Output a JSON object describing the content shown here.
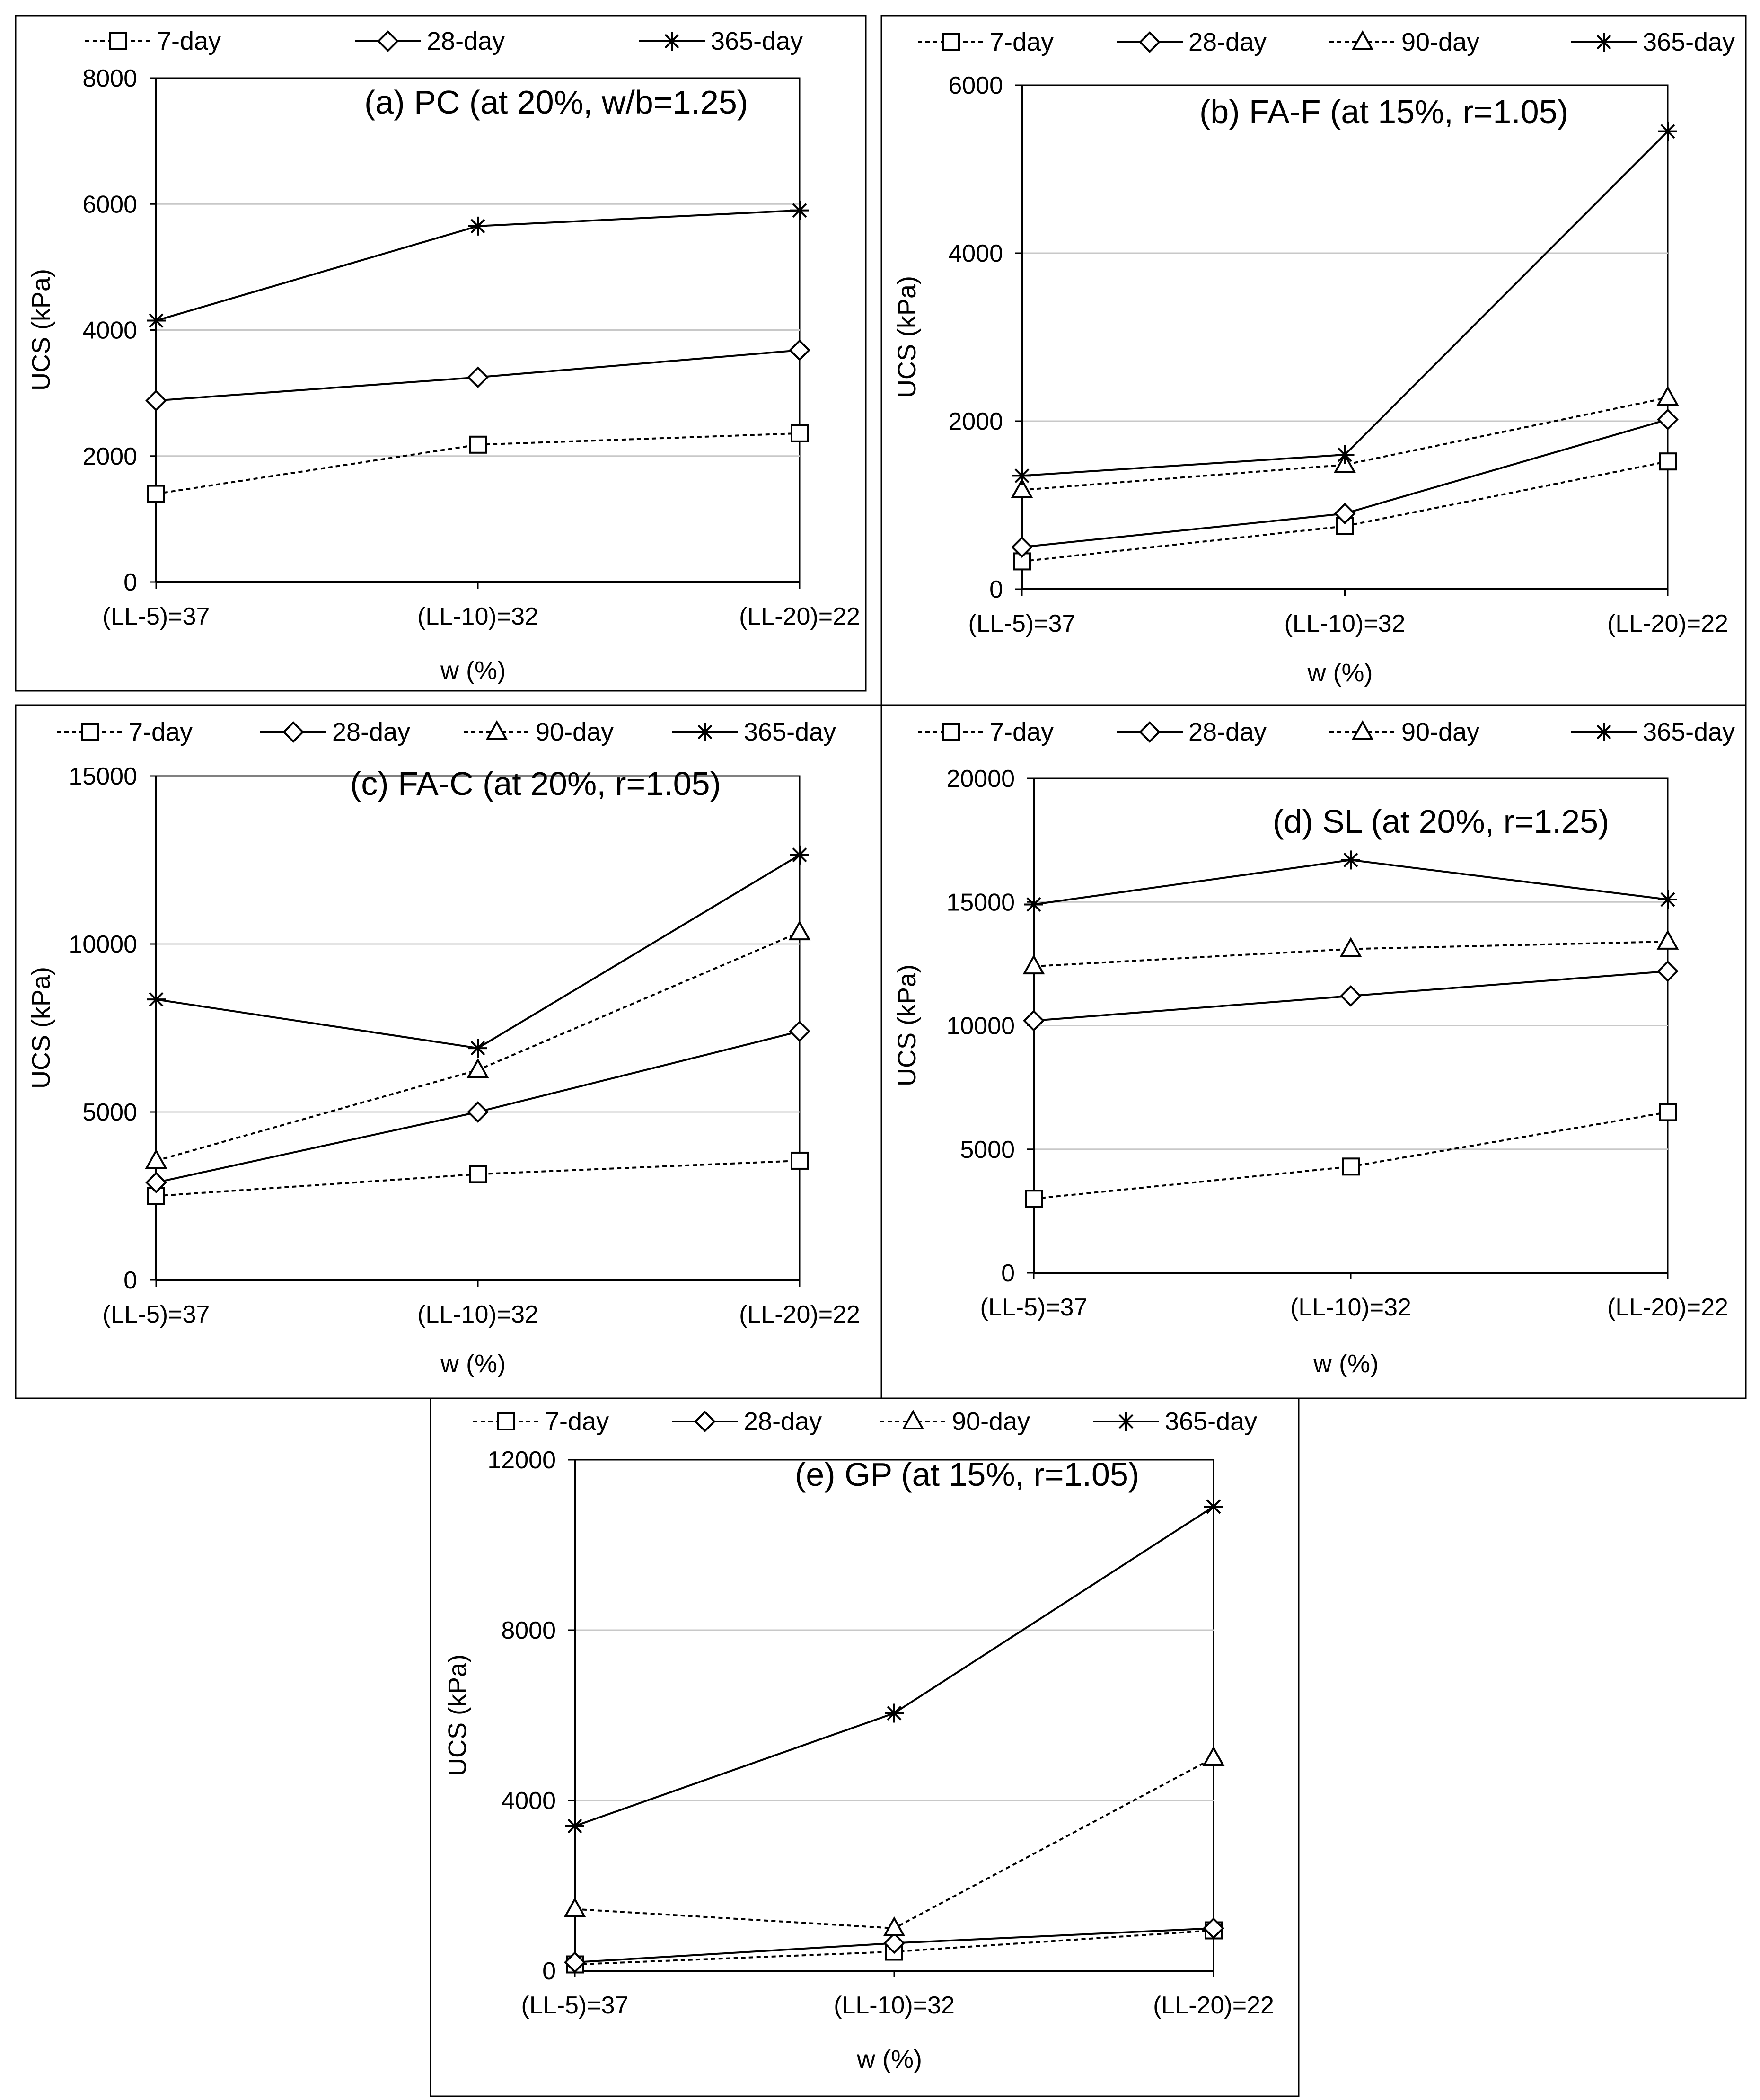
{
  "series_styles": {
    "7-day": {
      "marker": "square",
      "dashed": true
    },
    "28-day": {
      "marker": "diamond",
      "dashed": false
    },
    "90-day": {
      "marker": "triangle",
      "dashed": true
    },
    "365-day": {
      "marker": "star",
      "dashed": false
    }
  },
  "colors": {
    "line": "#000000",
    "grid": "#c8c8c8",
    "background": "#ffffff"
  },
  "chart_data": [
    {
      "type": "line",
      "title": "(a) PC (at 20%, w/b=1.25)",
      "xlabel": "w (%)",
      "ylabel": "UCS (kPa)",
      "categories": [
        "(LL-5)=37",
        "(LL-10)=32",
        "(LL-20)=22"
      ],
      "ylim": [
        0,
        8000
      ],
      "yticks": [
        0,
        2000,
        4000,
        6000,
        8000
      ],
      "grid": true,
      "legend_position": "top",
      "series": [
        {
          "name": "7-day",
          "values": [
            1400,
            2180,
            2360
          ]
        },
        {
          "name": "28-day",
          "values": [
            2880,
            3250,
            3680
          ]
        },
        {
          "name": "365-day",
          "values": [
            4150,
            5650,
            5900
          ]
        }
      ]
    },
    {
      "type": "line",
      "title": "(b) FA-F (at 15%, r=1.05)",
      "xlabel": "w (%)",
      "ylabel": "UCS (kPa)",
      "categories": [
        "(LL-5)=37",
        "(LL-10)=32",
        "(LL-20)=22"
      ],
      "ylim": [
        0,
        6000
      ],
      "yticks": [
        0,
        2000,
        4000,
        6000
      ],
      "grid": true,
      "legend_position": "top",
      "series": [
        {
          "name": "7-day",
          "values": [
            330,
            750,
            1520
          ]
        },
        {
          "name": "28-day",
          "values": [
            500,
            900,
            2020
          ]
        },
        {
          "name": "90-day",
          "values": [
            1180,
            1480,
            2280
          ]
        },
        {
          "name": "365-day",
          "values": [
            1350,
            1600,
            5450
          ]
        }
      ]
    },
    {
      "type": "line",
      "title": "(c) FA-C (at 20%, r=1.05)",
      "xlabel": "w (%)",
      "ylabel": "UCS (kPa)",
      "categories": [
        "(LL-5)=37",
        "(LL-10)=32",
        "(LL-20)=22"
      ],
      "ylim": [
        0,
        15000
      ],
      "yticks": [
        0,
        5000,
        10000,
        15000
      ],
      "grid": true,
      "legend_position": "top",
      "series": [
        {
          "name": "7-day",
          "values": [
            2500,
            3150,
            3550
          ]
        },
        {
          "name": "28-day",
          "values": [
            2900,
            5000,
            7400
          ]
        },
        {
          "name": "90-day",
          "values": [
            3550,
            6250,
            10350
          ]
        },
        {
          "name": "365-day",
          "values": [
            8350,
            6900,
            12650
          ]
        }
      ]
    },
    {
      "type": "line",
      "title": "(d) SL (at 20%, r=1.25)",
      "xlabel": "w (%)",
      "ylabel": "UCS (kPa)",
      "categories": [
        "(LL-5)=37",
        "(LL-10)=32",
        "(LL-20)=22"
      ],
      "ylim": [
        0,
        20000
      ],
      "yticks": [
        0,
        5000,
        10000,
        15000,
        20000
      ],
      "grid": true,
      "legend_position": "top",
      "series": [
        {
          "name": "7-day",
          "values": [
            3000,
            4300,
            6500
          ]
        },
        {
          "name": "28-day",
          "values": [
            10200,
            11200,
            12200
          ]
        },
        {
          "name": "90-day",
          "values": [
            12400,
            13100,
            13400
          ]
        },
        {
          "name": "365-day",
          "values": [
            14900,
            16700,
            15100
          ]
        }
      ]
    },
    {
      "type": "line",
      "title": "(e) GP (at 15%, r=1.05)",
      "xlabel": "w (%)",
      "ylabel": "UCS (kPa)",
      "categories": [
        "(LL-5)=37",
        "(LL-10)=32",
        "(LL-20)=22"
      ],
      "ylim": [
        0,
        12000
      ],
      "yticks": [
        0,
        4000,
        8000,
        12000
      ],
      "grid": true,
      "legend_position": "top",
      "series": [
        {
          "name": "7-day",
          "values": [
            150,
            450,
            950
          ]
        },
        {
          "name": "28-day",
          "values": [
            200,
            650,
            1000
          ]
        },
        {
          "name": "90-day",
          "values": [
            1450,
            1000,
            5000
          ]
        },
        {
          "name": "365-day",
          "values": [
            3400,
            6050,
            10900
          ]
        }
      ]
    }
  ]
}
